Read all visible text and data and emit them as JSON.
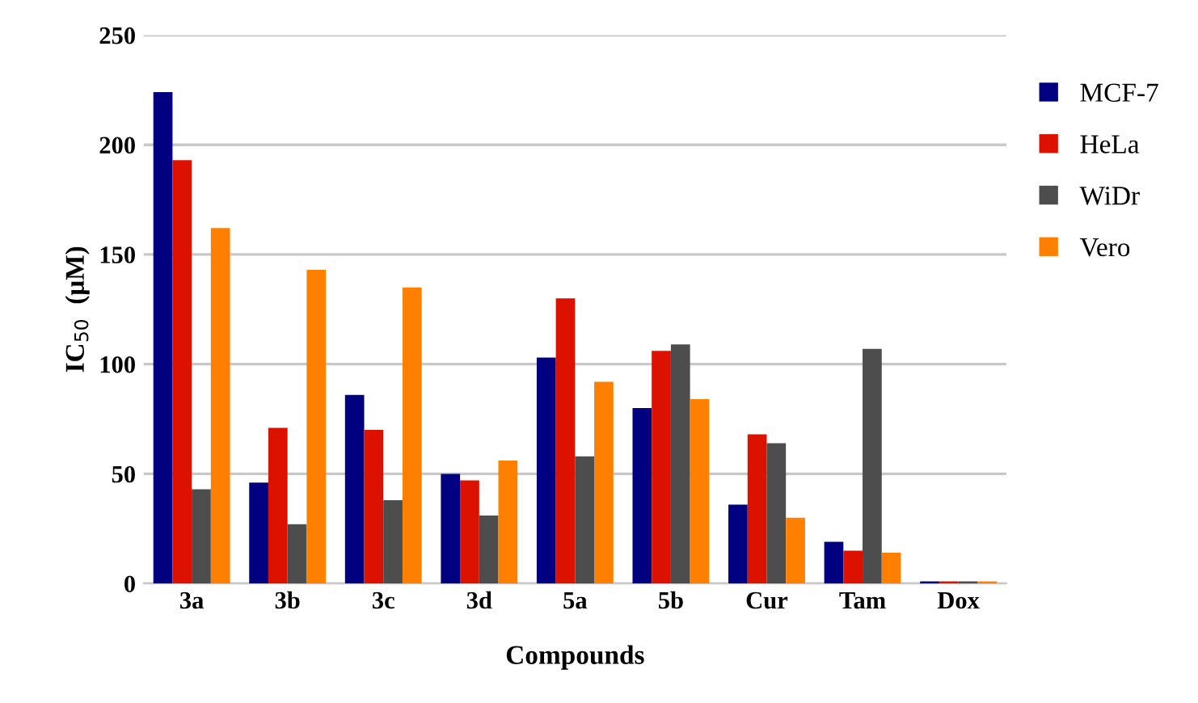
{
  "chart_data": {
    "type": "bar",
    "xlabel": "Compounds",
    "ylabel": "IC$_{50}$  (μM)",
    "categories": [
      "3a",
      "3b",
      "3c",
      "3d",
      "5a",
      "5b",
      "Cur",
      "Tam",
      "Dox"
    ],
    "series": [
      {
        "name": "MCF-7",
        "color": "#000080",
        "values": [
          224,
          46,
          86,
          50,
          103,
          80,
          36,
          19,
          1
        ]
      },
      {
        "name": "HeLa",
        "color": "#dd1100",
        "values": [
          193,
          71,
          70,
          47,
          130,
          106,
          68,
          15,
          1
        ]
      },
      {
        "name": "WiDr",
        "color": "#4d4d4d",
        "values": [
          43,
          27,
          38,
          31,
          58,
          109,
          64,
          107,
          1
        ]
      },
      {
        "name": "Vero",
        "color": "#ff8000",
        "values": [
          162,
          143,
          135,
          56,
          92,
          84,
          30,
          14,
          1
        ]
      }
    ],
    "ylim": [
      0,
      250
    ],
    "yticks": [
      0,
      50,
      100,
      150,
      200,
      250
    ],
    "grid": "y",
    "legend": "right"
  }
}
